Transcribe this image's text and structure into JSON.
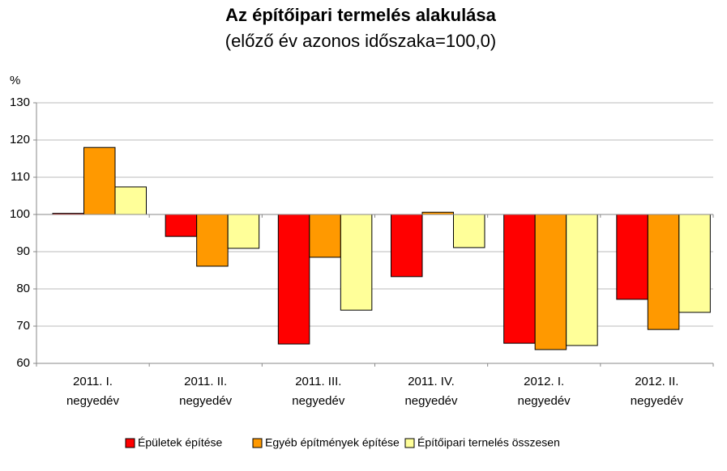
{
  "chart_data": {
    "type": "bar",
    "title": "Az építőipari termelés alakulása",
    "subtitle": "(előző év azonos időszaka=100,0)",
    "y_label": "%",
    "categories": [
      "2011. I.\nnegyedév",
      "2011. II.\nnegyedév",
      "2011. III.\nnegyedév",
      "2011. IV.\nnegyedév",
      "2012. I.\nnegyedév",
      "2012. II.\nnegyedév"
    ],
    "series": [
      {
        "name": "Épületek építése",
        "color": "#ff0000",
        "values": [
          100.3,
          94.1,
          65.2,
          83.3,
          65.4,
          77.2
        ]
      },
      {
        "name": "Egyéb építmények építése",
        "color": "#ff9900",
        "values": [
          118.0,
          86.1,
          88.5,
          100.6,
          63.7,
          69.1
        ]
      },
      {
        "name": "Építőipari ternelés összesen",
        "color": "#ffff99",
        "values": [
          107.4,
          90.9,
          74.3,
          91.1,
          64.8,
          73.7
        ]
      }
    ],
    "base": 100,
    "ylim": [
      60,
      130
    ],
    "yticks": [
      60,
      70,
      80,
      90,
      100,
      110,
      120,
      130
    ],
    "grid": true,
    "legend": "bottom"
  }
}
